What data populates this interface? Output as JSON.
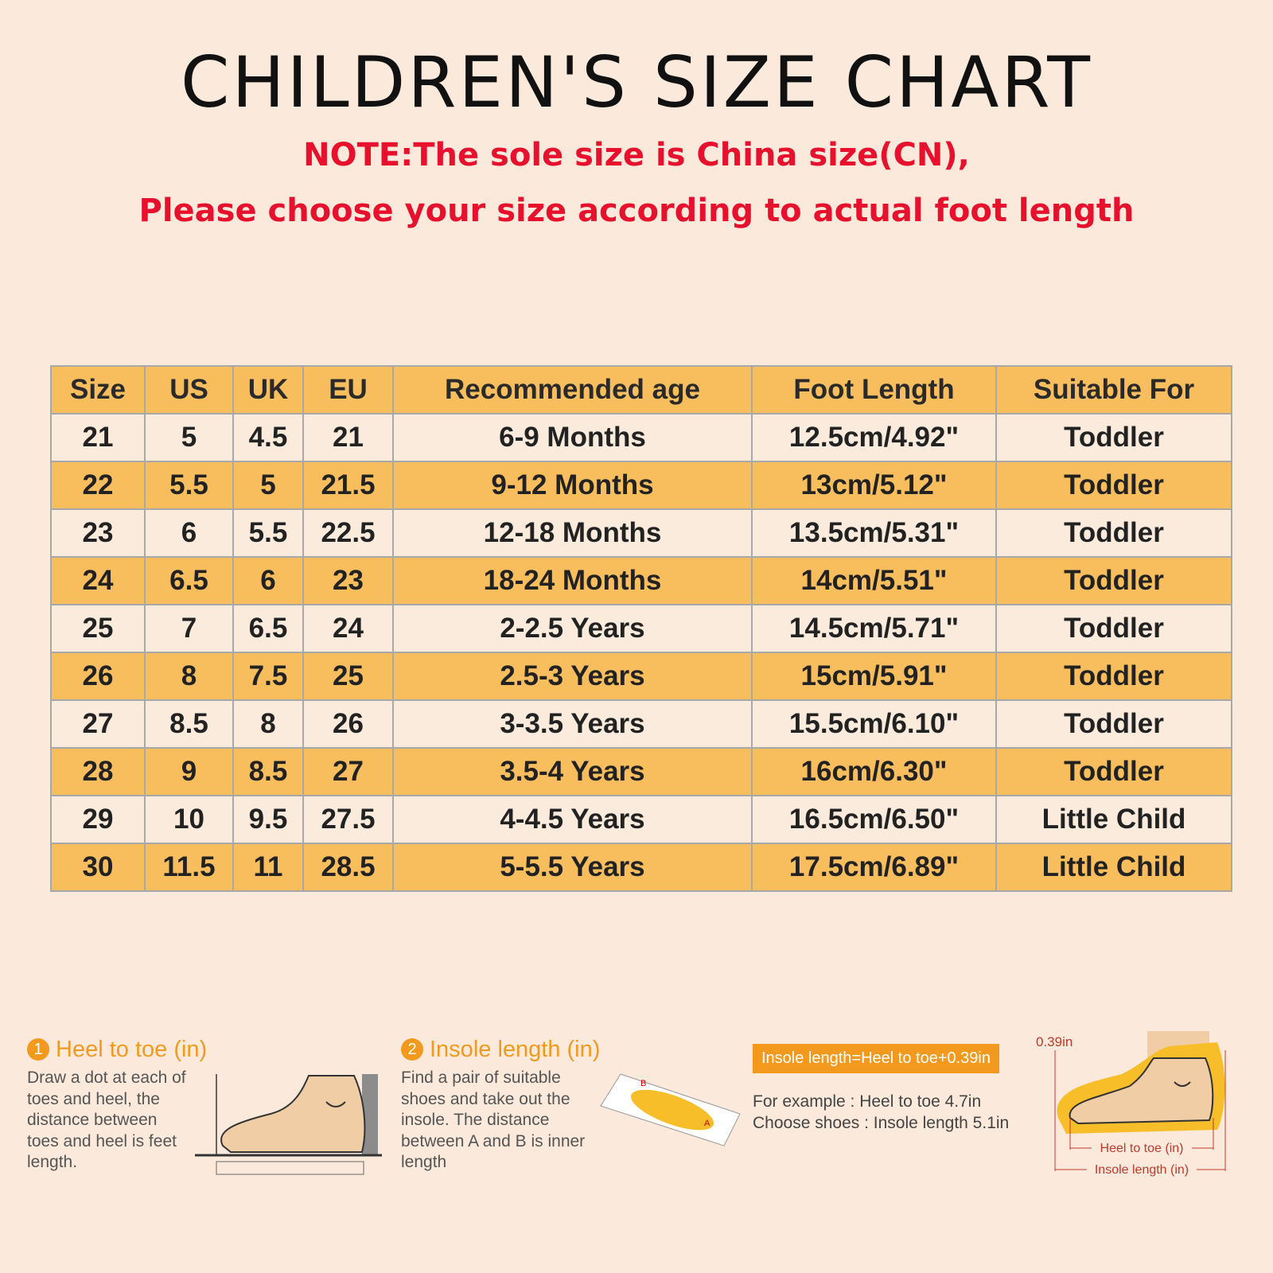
{
  "header": {
    "title": "CHILDREN'S SIZE CHART",
    "note_lines": [
      "NOTE:The sole size is China size(CN),",
      "Please choose your size according to actual foot length"
    ]
  },
  "table": {
    "columns": [
      "Size",
      "US",
      "UK",
      "EU",
      "Recommended age",
      "Foot Length",
      "Suitable For"
    ],
    "rows": [
      [
        "21",
        "5",
        "4.5",
        "21",
        "6-9 Months",
        "12.5cm/4.92\"",
        "Toddler"
      ],
      [
        "22",
        "5.5",
        "5",
        "21.5",
        "9-12 Months",
        "13cm/5.12\"",
        "Toddler"
      ],
      [
        "23",
        "6",
        "5.5",
        "22.5",
        "12-18 Months",
        "13.5cm/5.31\"",
        "Toddler"
      ],
      [
        "24",
        "6.5",
        "6",
        "23",
        "18-24 Months",
        "14cm/5.51\"",
        "Toddler"
      ],
      [
        "25",
        "7",
        "6.5",
        "24",
        "2-2.5 Years",
        "14.5cm/5.71\"",
        "Toddler"
      ],
      [
        "26",
        "8",
        "7.5",
        "25",
        "2.5-3 Years",
        "15cm/5.91\"",
        "Toddler"
      ],
      [
        "27",
        "8.5",
        "8",
        "26",
        "3-3.5 Years",
        "15.5cm/6.10\"",
        "Toddler"
      ],
      [
        "28",
        "9",
        "8.5",
        "27",
        "3.5-4 Years",
        "16cm/6.30\"",
        "Toddler"
      ],
      [
        "29",
        "10",
        "9.5",
        "27.5",
        "4-4.5 Years",
        "16.5cm/6.50\"",
        "Little Child"
      ],
      [
        "30",
        "11.5",
        "11",
        "28.5",
        "5-5.5 Years",
        "17.5cm/6.89\"",
        "Little Child"
      ]
    ]
  },
  "guide": {
    "steps": [
      {
        "number": "1",
        "title": "Heel to toe (in)",
        "lines": [
          "Draw a dot at each of",
          "toes and heel, the",
          "distance between",
          "toes and heel is feet",
          "length."
        ]
      },
      {
        "number": "2",
        "title": "Insole length (in)",
        "lines": [
          "Find a pair of suitable",
          "shoes and take out the",
          "insole. The distance",
          "between A and B is inner",
          "length"
        ]
      }
    ],
    "insole_labels": [
      "B",
      "A"
    ],
    "formula": "Insole length=Heel to toe+0.39in",
    "example_lines": [
      "For example : Heel to toe  4.7in",
      "Choose shoes : Insole length 5.1in"
    ],
    "diagram_labels": {
      "gap": "0.39in",
      "heel_to_toe": "Heel to toe (in)",
      "insole_length": "Insole length (in)"
    }
  }
}
